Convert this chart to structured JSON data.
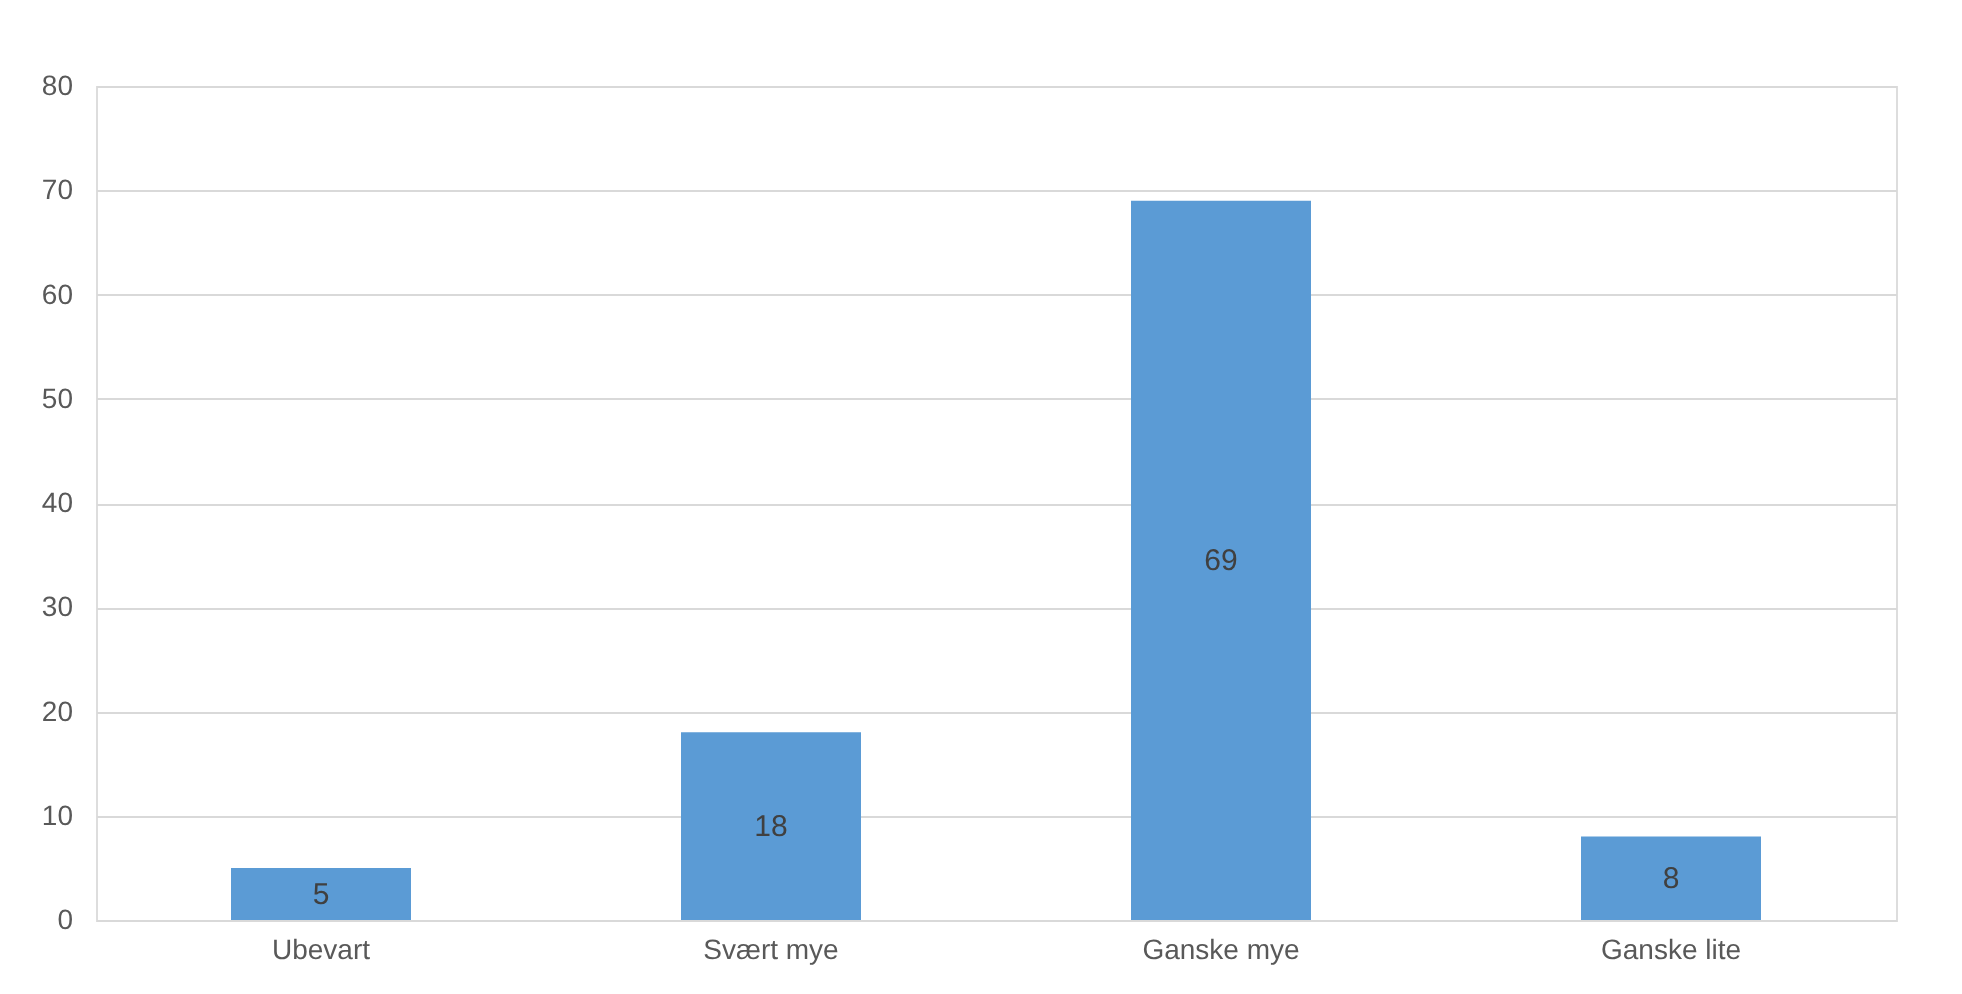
{
  "chart_data": {
    "type": "bar",
    "categories": [
      "Ubevart",
      "Svært mye",
      "Ganske mye",
      "Ganske lite"
    ],
    "values": [
      5,
      18,
      69,
      8
    ],
    "color": "#5b9bd5",
    "data_labels": true,
    "grid": "y",
    "ylim": [
      0,
      80
    ],
    "yticks": [
      0,
      10,
      20,
      30,
      40,
      50,
      60,
      70,
      80
    ]
  }
}
